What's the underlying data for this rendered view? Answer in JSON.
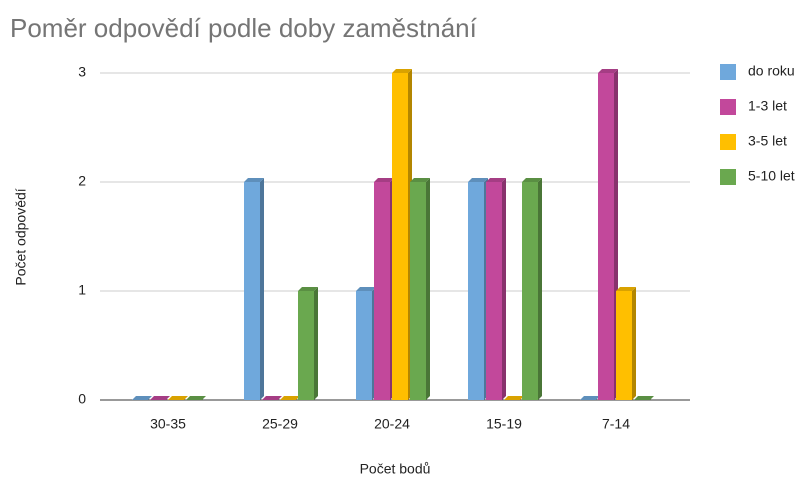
{
  "chart_data": {
    "type": "bar",
    "title": "Poměr odpovědí podle doby zaměstnání",
    "x_label": "Počet bodů",
    "y_label": "Počet odpovědí",
    "categories": [
      "30-35",
      "25-29",
      "20-24",
      "15-19",
      "7-14"
    ],
    "series": [
      {
        "name": "do roku",
        "color": "#6fa8dc",
        "values": [
          0,
          2,
          1,
          2,
          0
        ]
      },
      {
        "name": "1-3 let",
        "color": "#c2489b",
        "values": [
          0,
          0,
          2,
          2,
          3
        ]
      },
      {
        "name": "3-5 let",
        "color": "#ffbf00",
        "values": [
          0,
          0,
          3,
          0,
          1
        ]
      },
      {
        "name": "5-10 let",
        "color": "#6aa84f",
        "values": [
          0,
          1,
          2,
          2,
          0
        ]
      }
    ],
    "ylim": [
      0,
      3
    ],
    "yticks": [
      0,
      1,
      2,
      3
    ],
    "grid": true,
    "legend": "right"
  }
}
